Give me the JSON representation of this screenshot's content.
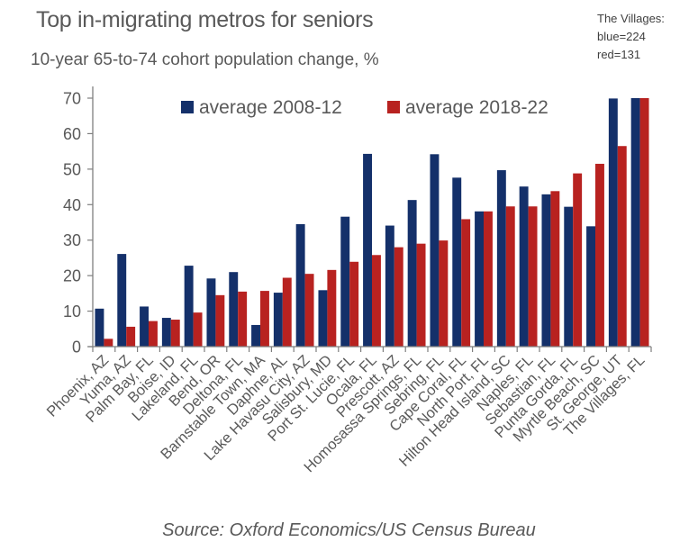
{
  "header": {
    "title": "Top in-migrating metros for seniors",
    "subtitle": "10-year 65-to-74 cohort population change, %",
    "note_lines": [
      "The Villages:",
      "blue=224",
      "red=131"
    ]
  },
  "footer": {
    "source": "Source: Oxford Economics/US Census Bureau"
  },
  "colors": {
    "series_2008_12": "#14306a",
    "series_2018_22": "#b82220",
    "axis": "#7f7f7f",
    "text": "#595959"
  },
  "chart_data": {
    "type": "bar",
    "title": "Top in-migrating metros for seniors",
    "subtitle": "10-year 65-to-74 cohort population change, %",
    "xlabel": "",
    "ylabel": "",
    "ylim": [
      0,
      70
    ],
    "yticks": [
      0,
      10,
      20,
      30,
      40,
      50,
      60,
      70
    ],
    "grid": false,
    "legend_position": "top-center",
    "annotation": "The Villages: blue=224 red=131 (bars clipped at axis max)",
    "categories": [
      "Phoenix, AZ",
      "Yuma, AZ",
      "Palm Bay, FL",
      "Boise, ID",
      "Lakeland, FL",
      "Bend, OR",
      "Deltona, FL",
      "Barnstable Town, MA",
      "Daphne, AL",
      "Lake Havasu City, AZ",
      "Salisbury, MD",
      "Port St. Lucie, FL",
      "Ocala, FL",
      "Prescott, AZ",
      "Homosassa Springs, FL",
      "Sebring, FL",
      "Cape Coral, FL",
      "North Port, FL",
      "Hilton Head Island, SC",
      "Naples, FL",
      "Sebastian, FL",
      "Punta Gorda, FL",
      "Myrtle Beach, SC",
      "St. George, UT",
      "The Villages, FL"
    ],
    "series": [
      {
        "name": "average 2008-12",
        "color": "#14306a",
        "values": [
          10.7,
          26.1,
          11.3,
          8.1,
          22.8,
          19.2,
          21.0,
          6.1,
          15.2,
          34.5,
          15.9,
          36.6,
          54.3,
          34.1,
          41.3,
          54.2,
          47.6,
          38.1,
          49.7,
          45.1,
          42.9,
          39.4,
          33.9,
          69.9,
          224
        ]
      },
      {
        "name": "average 2018-22",
        "color": "#b82220",
        "values": [
          2.2,
          5.6,
          7.2,
          7.6,
          9.6,
          14.5,
          15.5,
          15.7,
          19.4,
          20.5,
          21.6,
          23.9,
          25.8,
          28.0,
          29.0,
          29.9,
          35.9,
          38.1,
          39.5,
          39.5,
          43.8,
          48.8,
          51.5,
          56.5,
          131
        ]
      }
    ]
  }
}
